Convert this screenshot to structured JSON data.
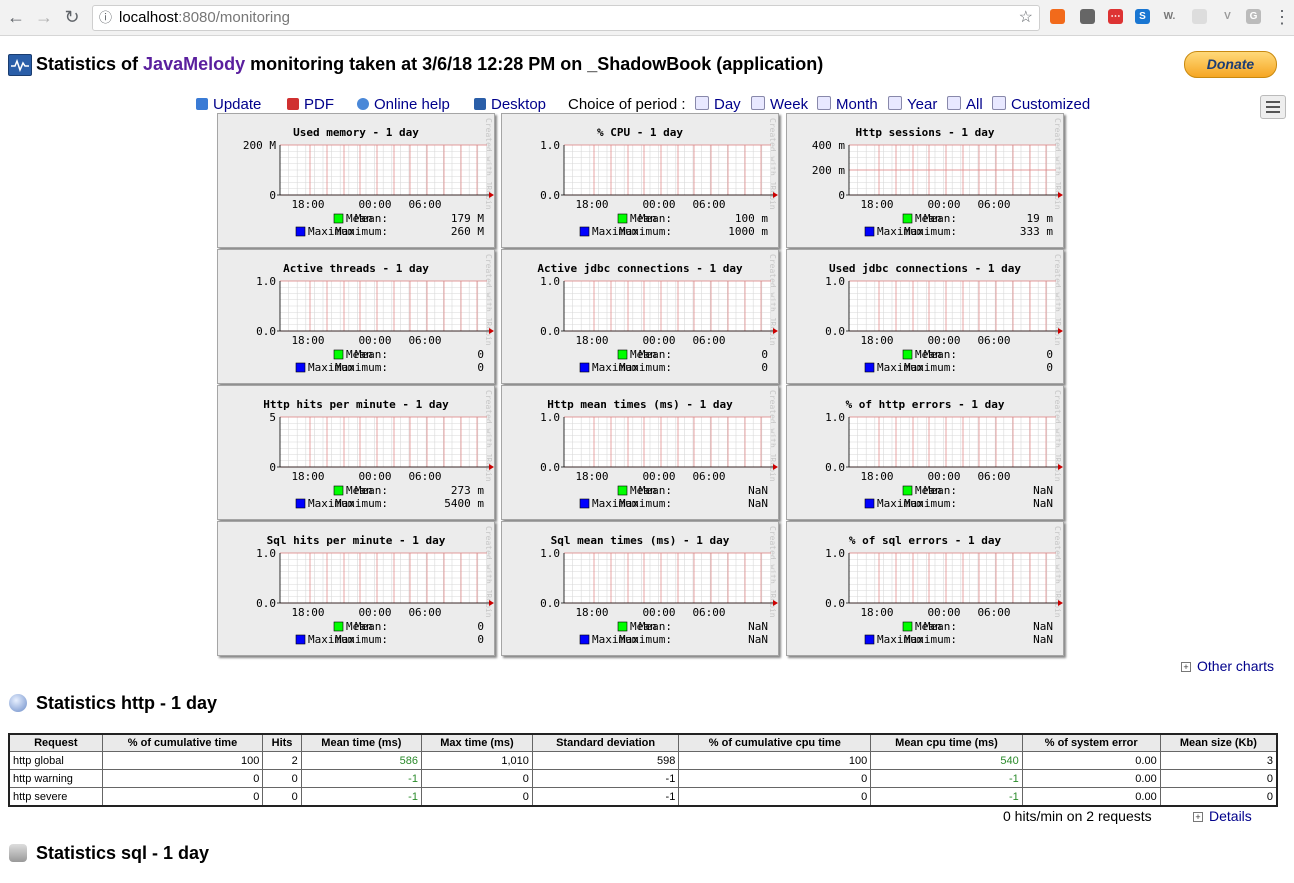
{
  "browser": {
    "url_host": "localhost",
    "url_rest": ":8080/monitoring"
  },
  "header": {
    "title_prefix": "Statistics of",
    "title_brand": "JavaMelody",
    "title_suffix": "monitoring taken at 3/6/18 12:28 PM on _ShadowBook (application)",
    "donate_label": "Donate"
  },
  "toolbar": {
    "update": "Update",
    "pdf": "PDF",
    "help": "Online help",
    "desktop": "Desktop",
    "period_label": "Choice of period :",
    "periods": [
      "Day",
      "Week",
      "Month",
      "Year",
      "All",
      "Customized"
    ]
  },
  "chart_data": [
    {
      "type": "bar",
      "title": "Used memory - 1 day",
      "x_ticks": [
        "18:00",
        "00:00",
        "06:00"
      ],
      "y_ticks": [
        "200 M",
        "0"
      ],
      "series": [
        {
          "name": "Mean",
          "value_label": "179 M"
        },
        {
          "name": "Maximum",
          "value_label": "260 M"
        }
      ]
    },
    {
      "type": "bar",
      "title": "% CPU - 1 day",
      "x_ticks": [
        "18:00",
        "00:00",
        "06:00"
      ],
      "y_ticks": [
        "1.0",
        "0.0"
      ],
      "series": [
        {
          "name": "Mean",
          "value_label": "100 m"
        },
        {
          "name": "Maximum",
          "value_label": "1000 m"
        }
      ]
    },
    {
      "type": "bar",
      "title": "Http sessions - 1 day",
      "x_ticks": [
        "18:00",
        "00:00",
        "06:00"
      ],
      "y_ticks": [
        "400 m",
        "200 m",
        "0"
      ],
      "series": [
        {
          "name": "Mean",
          "value_label": "19 m"
        },
        {
          "name": "Maximum",
          "value_label": "333 m"
        }
      ]
    },
    {
      "type": "bar",
      "title": "Active threads - 1 day",
      "x_ticks": [
        "18:00",
        "00:00",
        "06:00"
      ],
      "y_ticks": [
        "1.0",
        "0.0"
      ],
      "series": [
        {
          "name": "Mean",
          "value_label": "0"
        },
        {
          "name": "Maximum",
          "value_label": "0"
        }
      ]
    },
    {
      "type": "bar",
      "title": "Active jdbc connections - 1 day",
      "x_ticks": [
        "18:00",
        "00:00",
        "06:00"
      ],
      "y_ticks": [
        "1.0",
        "0.0"
      ],
      "series": [
        {
          "name": "Mean",
          "value_label": "0"
        },
        {
          "name": "Maximum",
          "value_label": "0"
        }
      ]
    },
    {
      "type": "bar",
      "title": "Used jdbc connections - 1 day",
      "x_ticks": [
        "18:00",
        "00:00",
        "06:00"
      ],
      "y_ticks": [
        "1.0",
        "0.0"
      ],
      "series": [
        {
          "name": "Mean",
          "value_label": "0"
        },
        {
          "name": "Maximum",
          "value_label": "0"
        }
      ]
    },
    {
      "type": "bar",
      "title": "Http hits per minute - 1 day",
      "x_ticks": [
        "18:00",
        "00:00",
        "06:00"
      ],
      "y_ticks": [
        "5",
        "0"
      ],
      "series": [
        {
          "name": "Mean",
          "value_label": "273 m"
        },
        {
          "name": "Maximum",
          "value_label": "5400 m"
        }
      ]
    },
    {
      "type": "bar",
      "title": "Http mean times (ms) - 1 day",
      "x_ticks": [
        "18:00",
        "00:00",
        "06:00"
      ],
      "y_ticks": [
        "1.0",
        "0.0"
      ],
      "series": [
        {
          "name": "Mean",
          "value_label": "NaN"
        },
        {
          "name": "Maximum",
          "value_label": "NaN"
        }
      ]
    },
    {
      "type": "bar",
      "title": "% of http errors - 1 day",
      "x_ticks": [
        "18:00",
        "00:00",
        "06:00"
      ],
      "y_ticks": [
        "1.0",
        "0.0"
      ],
      "series": [
        {
          "name": "Mean",
          "value_label": "NaN"
        },
        {
          "name": "Maximum",
          "value_label": "NaN"
        }
      ]
    },
    {
      "type": "bar",
      "title": "Sql hits per minute - 1 day",
      "x_ticks": [
        "18:00",
        "00:00",
        "06:00"
      ],
      "y_ticks": [
        "1.0",
        "0.0"
      ],
      "series": [
        {
          "name": "Mean",
          "value_label": "0"
        },
        {
          "name": "Maximum",
          "value_label": "0"
        }
      ]
    },
    {
      "type": "bar",
      "title": "Sql mean times (ms) - 1 day",
      "x_ticks": [
        "18:00",
        "00:00",
        "06:00"
      ],
      "y_ticks": [
        "1.0",
        "0.0"
      ],
      "series": [
        {
          "name": "Mean",
          "value_label": "NaN"
        },
        {
          "name": "Maximum",
          "value_label": "NaN"
        }
      ]
    },
    {
      "type": "bar",
      "title": "% of sql errors - 1 day",
      "x_ticks": [
        "18:00",
        "00:00",
        "06:00"
      ],
      "y_ticks": [
        "1.0",
        "0.0"
      ],
      "series": [
        {
          "name": "Mean",
          "value_label": "NaN"
        },
        {
          "name": "Maximum",
          "value_label": "NaN"
        }
      ]
    }
  ],
  "chart_common": {
    "watermark": "Created with JRobin",
    "colors": {
      "mean": "#00ff00",
      "maximum": "#0000ff",
      "grid": "#e08080",
      "minor_grid": "#d8d8d8",
      "plot_bg": "#ffffff",
      "arrow": "#cc0000"
    }
  },
  "other_charts": "Other charts",
  "http_section": {
    "title": "Statistics http - 1 day",
    "columns": [
      "Request",
      "% of cumulative time",
      "Hits",
      "Mean time (ms)",
      "Max time (ms)",
      "Standard deviation",
      "% of cumulative cpu time",
      "Mean cpu time (ms)",
      "% of system error",
      "Mean size (Kb)"
    ],
    "rows": [
      [
        "http global",
        "100",
        "2",
        "586",
        "1,010",
        "598",
        "100",
        "540",
        "0.00",
        "3"
      ],
      [
        "http warning",
        "0",
        "0",
        "-1",
        "0",
        "-1",
        "0",
        "-1",
        "0.00",
        "0"
      ],
      [
        "http severe",
        "0",
        "0",
        "-1",
        "0",
        "-1",
        "0",
        "-1",
        "0.00",
        "0"
      ]
    ],
    "summary": "0 hits/min on 2 requests",
    "details": "Details"
  },
  "sql_section": {
    "title": "Statistics sql - 1 day"
  }
}
